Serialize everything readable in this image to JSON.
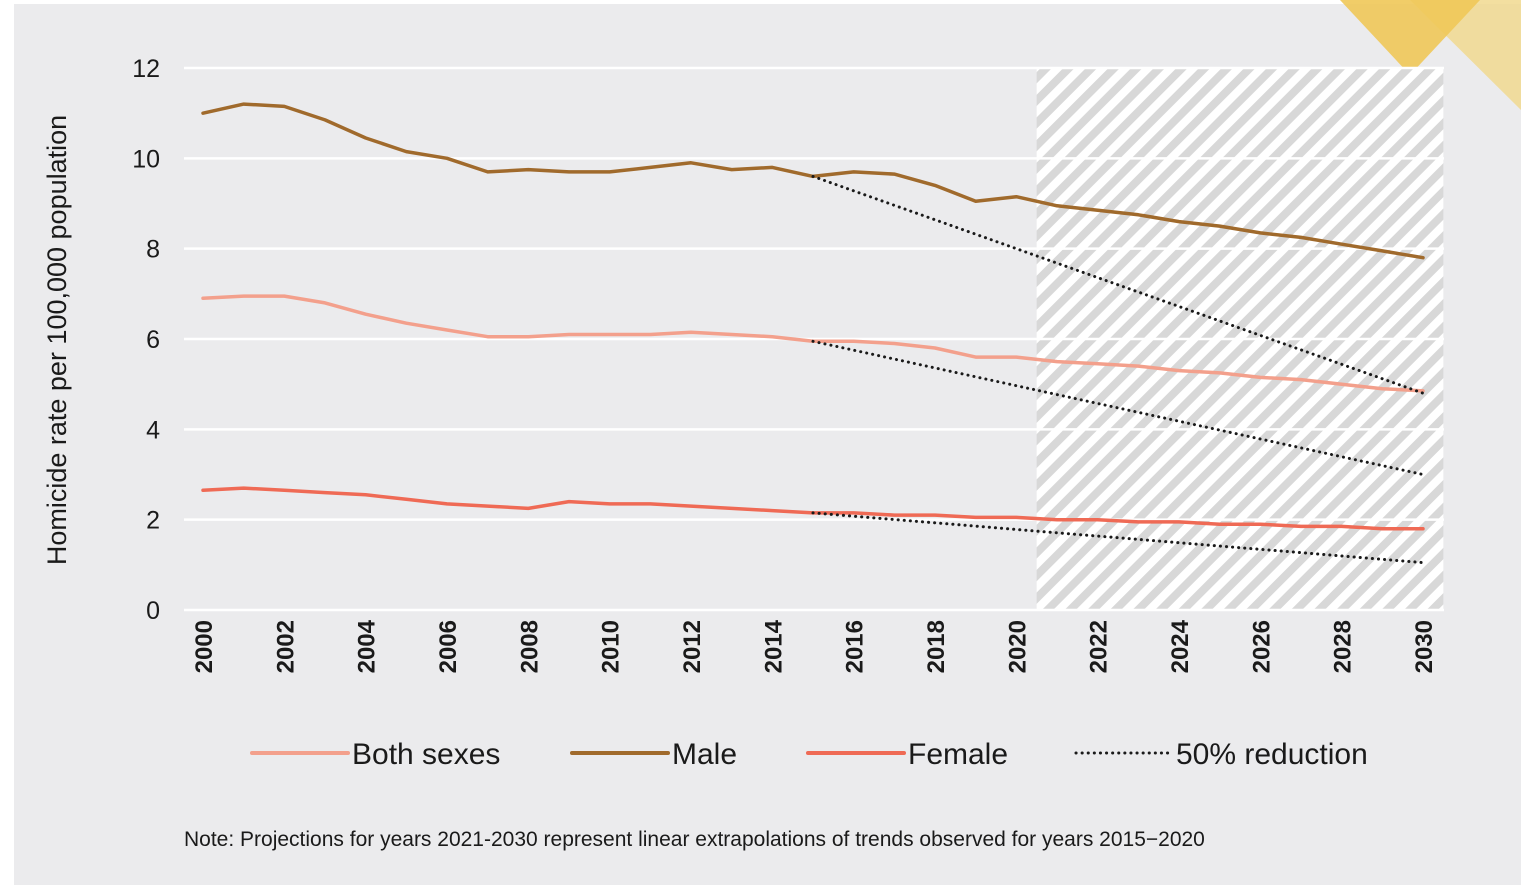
{
  "chart_data": {
    "type": "line",
    "title": "",
    "ylabel": "Homicide rate per 100,000 population",
    "xlabel": "",
    "xlim": [
      2000,
      2030
    ],
    "ylim": [
      0,
      12
    ],
    "y_ticks": [
      0,
      2,
      4,
      6,
      8,
      10,
      12
    ],
    "x_ticks": [
      2000,
      2002,
      2004,
      2006,
      2008,
      2010,
      2012,
      2014,
      2016,
      2018,
      2020,
      2022,
      2024,
      2026,
      2028,
      2030
    ],
    "grid": "horizontal",
    "projection_shading": {
      "from": 2020.5,
      "to": 2030.5
    },
    "legend_position": "bottom",
    "series": [
      {
        "name": "Both sexes",
        "color": "#f3a08c",
        "style": "solid",
        "x": [
          2000,
          2001,
          2002,
          2003,
          2004,
          2005,
          2006,
          2007,
          2008,
          2009,
          2010,
          2011,
          2012,
          2013,
          2014,
          2015,
          2016,
          2017,
          2018,
          2019,
          2020,
          2021,
          2022,
          2023,
          2024,
          2025,
          2026,
          2027,
          2028,
          2029,
          2030
        ],
        "values": [
          6.9,
          6.95,
          6.95,
          6.8,
          6.55,
          6.35,
          6.2,
          6.05,
          6.05,
          6.1,
          6.1,
          6.1,
          6.15,
          6.1,
          6.05,
          5.95,
          5.95,
          5.9,
          5.8,
          5.6,
          5.6,
          5.5,
          5.45,
          5.4,
          5.3,
          5.25,
          5.15,
          5.1,
          5.0,
          4.9,
          4.85
        ]
      },
      {
        "name": "Male",
        "color": "#a06a2c",
        "style": "solid",
        "x": [
          2000,
          2001,
          2002,
          2003,
          2004,
          2005,
          2006,
          2007,
          2008,
          2009,
          2010,
          2011,
          2012,
          2013,
          2014,
          2015,
          2016,
          2017,
          2018,
          2019,
          2020,
          2021,
          2022,
          2023,
          2024,
          2025,
          2026,
          2027,
          2028,
          2029,
          2030
        ],
        "values": [
          11.0,
          11.2,
          11.15,
          10.85,
          10.45,
          10.15,
          10.0,
          9.7,
          9.75,
          9.7,
          9.7,
          9.8,
          9.9,
          9.75,
          9.8,
          9.6,
          9.7,
          9.65,
          9.4,
          9.05,
          9.15,
          8.95,
          8.85,
          8.75,
          8.6,
          8.5,
          8.35,
          8.25,
          8.1,
          7.95,
          7.8
        ]
      },
      {
        "name": "Female",
        "color": "#ef6a55",
        "style": "solid",
        "x": [
          2000,
          2001,
          2002,
          2003,
          2004,
          2005,
          2006,
          2007,
          2008,
          2009,
          2010,
          2011,
          2012,
          2013,
          2014,
          2015,
          2016,
          2017,
          2018,
          2019,
          2020,
          2021,
          2022,
          2023,
          2024,
          2025,
          2026,
          2027,
          2028,
          2029,
          2030
        ],
        "values": [
          2.65,
          2.7,
          2.65,
          2.6,
          2.55,
          2.45,
          2.35,
          2.3,
          2.25,
          2.4,
          2.35,
          2.35,
          2.3,
          2.25,
          2.2,
          2.15,
          2.15,
          2.1,
          2.1,
          2.05,
          2.05,
          2.0,
          2.0,
          1.95,
          1.95,
          1.9,
          1.9,
          1.85,
          1.85,
          1.8,
          1.8
        ]
      },
      {
        "name": "50% reduction",
        "color": "#1a1a1a",
        "style": "dotted",
        "segments": [
          {
            "x": [
              2015,
              2030
            ],
            "values": [
              9.6,
              4.8
            ]
          },
          {
            "x": [
              2015,
              2030
            ],
            "values": [
              5.95,
              3.0
            ]
          },
          {
            "x": [
              2015,
              2030
            ],
            "values": [
              2.15,
              1.05
            ]
          }
        ]
      }
    ],
    "note": "Note: Projections for years 2021-2030 represent linear extrapolations of trends observed for years 2015−2020"
  }
}
